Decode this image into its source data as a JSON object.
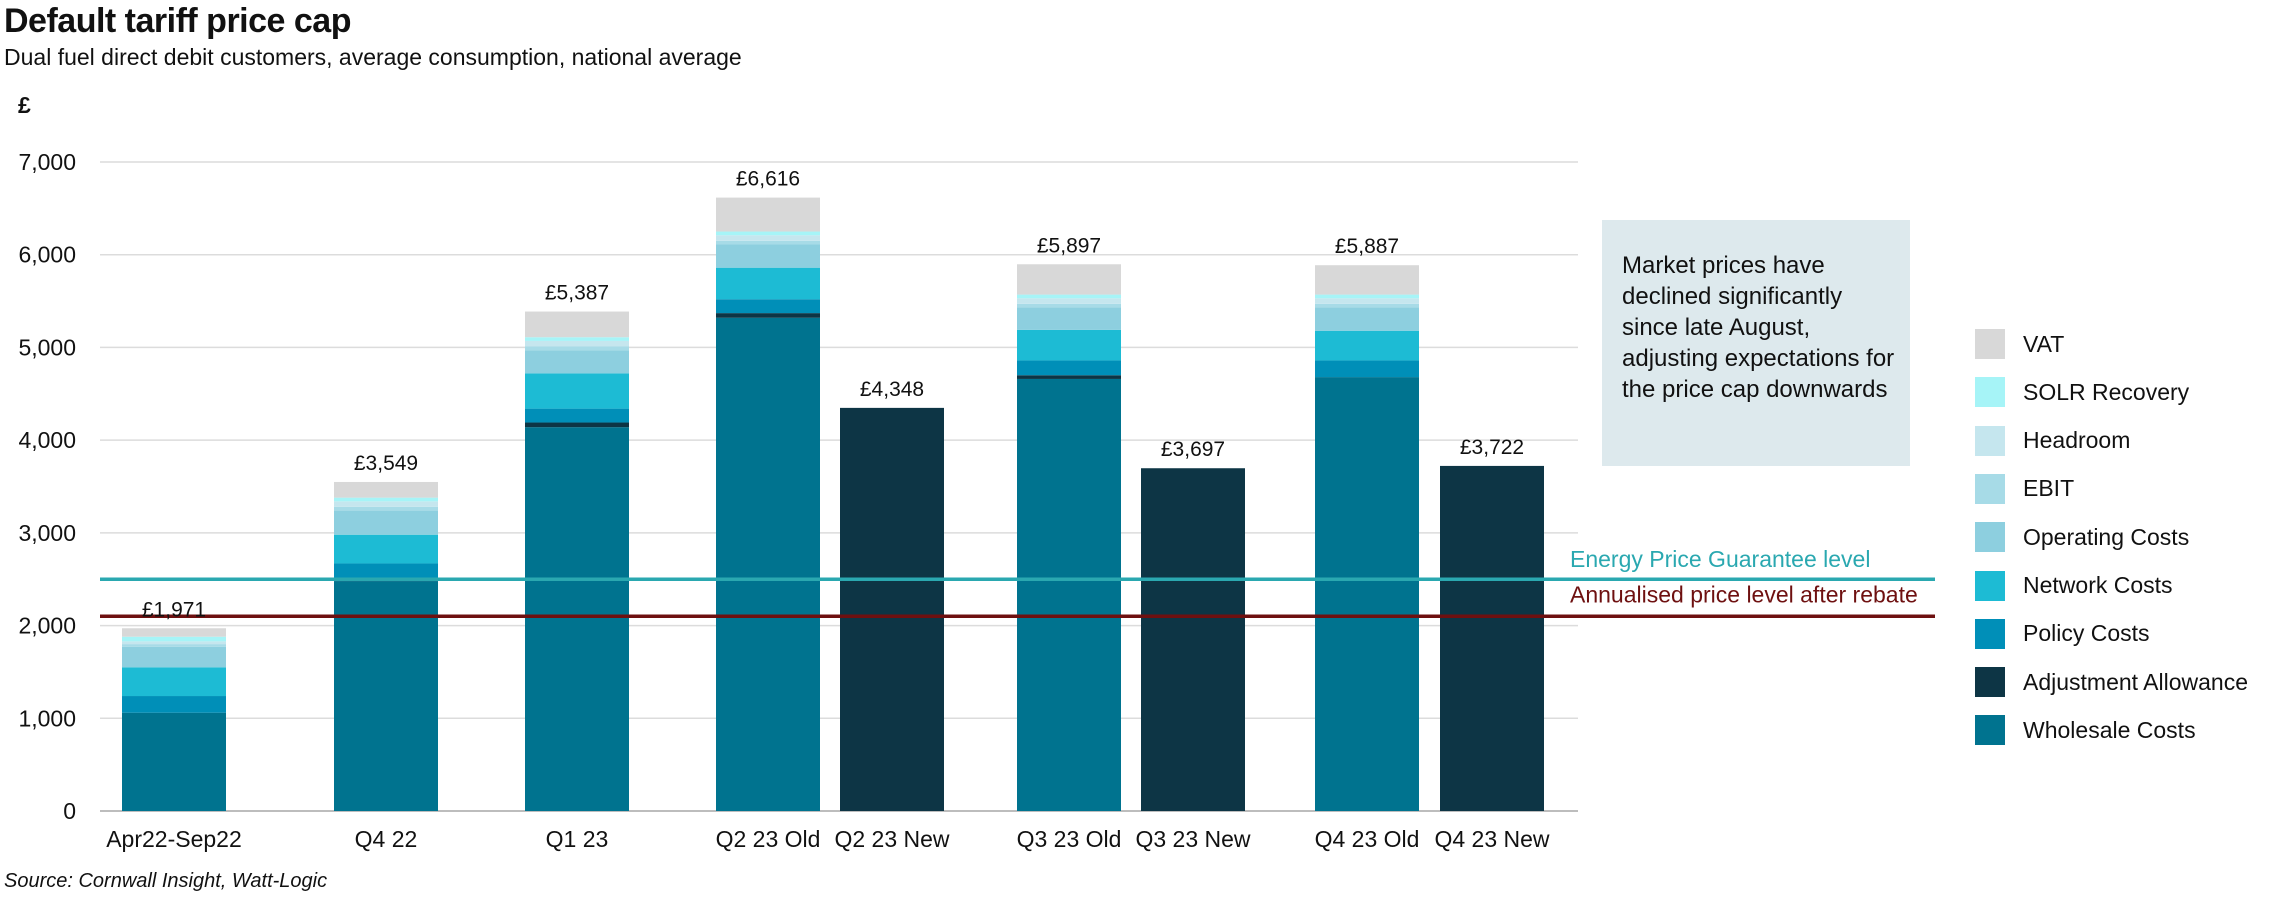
{
  "chart_data": {
    "type": "bar",
    "stacked": true,
    "title": "Default tariff price cap",
    "subtitle": "Dual fuel direct debit customers, average consumption, national average",
    "ylabel": "£",
    "ylim": [
      0,
      7000
    ],
    "yticks": [
      0,
      1000,
      2000,
      3000,
      4000,
      5000,
      6000,
      7000
    ],
    "ytick_labels": [
      "0",
      "1,000",
      "2,000",
      "3,000",
      "4,000",
      "5,000",
      "6,000",
      "7,000"
    ],
    "grid": true,
    "legend_position": "right",
    "categories": [
      "Apr22-Sep22",
      "Q4 22",
      "Q1 23",
      "Q2 23 Old",
      "Q2 23 New",
      "Q3 23 Old",
      "Q3 23 New",
      "Q4 23 Old",
      "Q4 23 New"
    ],
    "totals": [
      1971,
      3549,
      5387,
      6616,
      4348,
      5897,
      3697,
      5887,
      3722
    ],
    "total_labels": [
      "£1,971",
      "£3,549",
      "£5,387",
      "£6,616",
      "£4,348",
      "£5,897",
      "£3,697",
      "£5,887",
      "£3,722"
    ],
    "series": [
      {
        "name": "Wholesale Costs",
        "color": "#00738f",
        "values": [
          1060,
          2480,
          4140,
          5320,
          0,
          4660,
          0,
          4680,
          0
        ]
      },
      {
        "name": "Adjustment Allowance",
        "color": "#0d3545",
        "values": [
          0,
          20,
          50,
          50,
          4348,
          40,
          3697,
          0,
          3722
        ]
      },
      {
        "name": "Policy Costs",
        "color": "#008fb8",
        "values": [
          180,
          170,
          150,
          150,
          0,
          160,
          0,
          180,
          0
        ]
      },
      {
        "name": "Network Costs",
        "color": "#1dbbd4",
        "values": [
          310,
          310,
          380,
          340,
          0,
          330,
          0,
          320,
          0
        ]
      },
      {
        "name": "Operating Costs",
        "color": "#8dcfdf",
        "values": [
          220,
          260,
          250,
          250,
          0,
          240,
          0,
          250,
          0
        ]
      },
      {
        "name": "EBIT",
        "color": "#a7dbe7",
        "values": [
          30,
          40,
          40,
          40,
          0,
          40,
          0,
          40,
          0
        ]
      },
      {
        "name": "Headroom",
        "color": "#c5e6ee",
        "values": [
          30,
          60,
          60,
          60,
          0,
          60,
          0,
          60,
          0
        ]
      },
      {
        "name": "SOLR Recovery",
        "color": "#a6f4f7",
        "values": [
          50,
          40,
          40,
          40,
          0,
          40,
          0,
          40,
          0
        ]
      },
      {
        "name": "VAT",
        "color": "#d8d8d8",
        "values": [
          91,
          169,
          277,
          366,
          0,
          327,
          0,
          317,
          0
        ]
      }
    ],
    "reference_lines": [
      {
        "label": "Energy Price Guarantee level",
        "value": 2500,
        "color": "#2aa8b0"
      },
      {
        "label": "Annualised price level after rebate",
        "value": 2100,
        "color": "#6e1010"
      }
    ],
    "annotation": "Market prices have declined significantly since late August, adjusting expectations for the price cap downwards",
    "source": "Source: Cornwall Insight, Watt-Logic"
  }
}
